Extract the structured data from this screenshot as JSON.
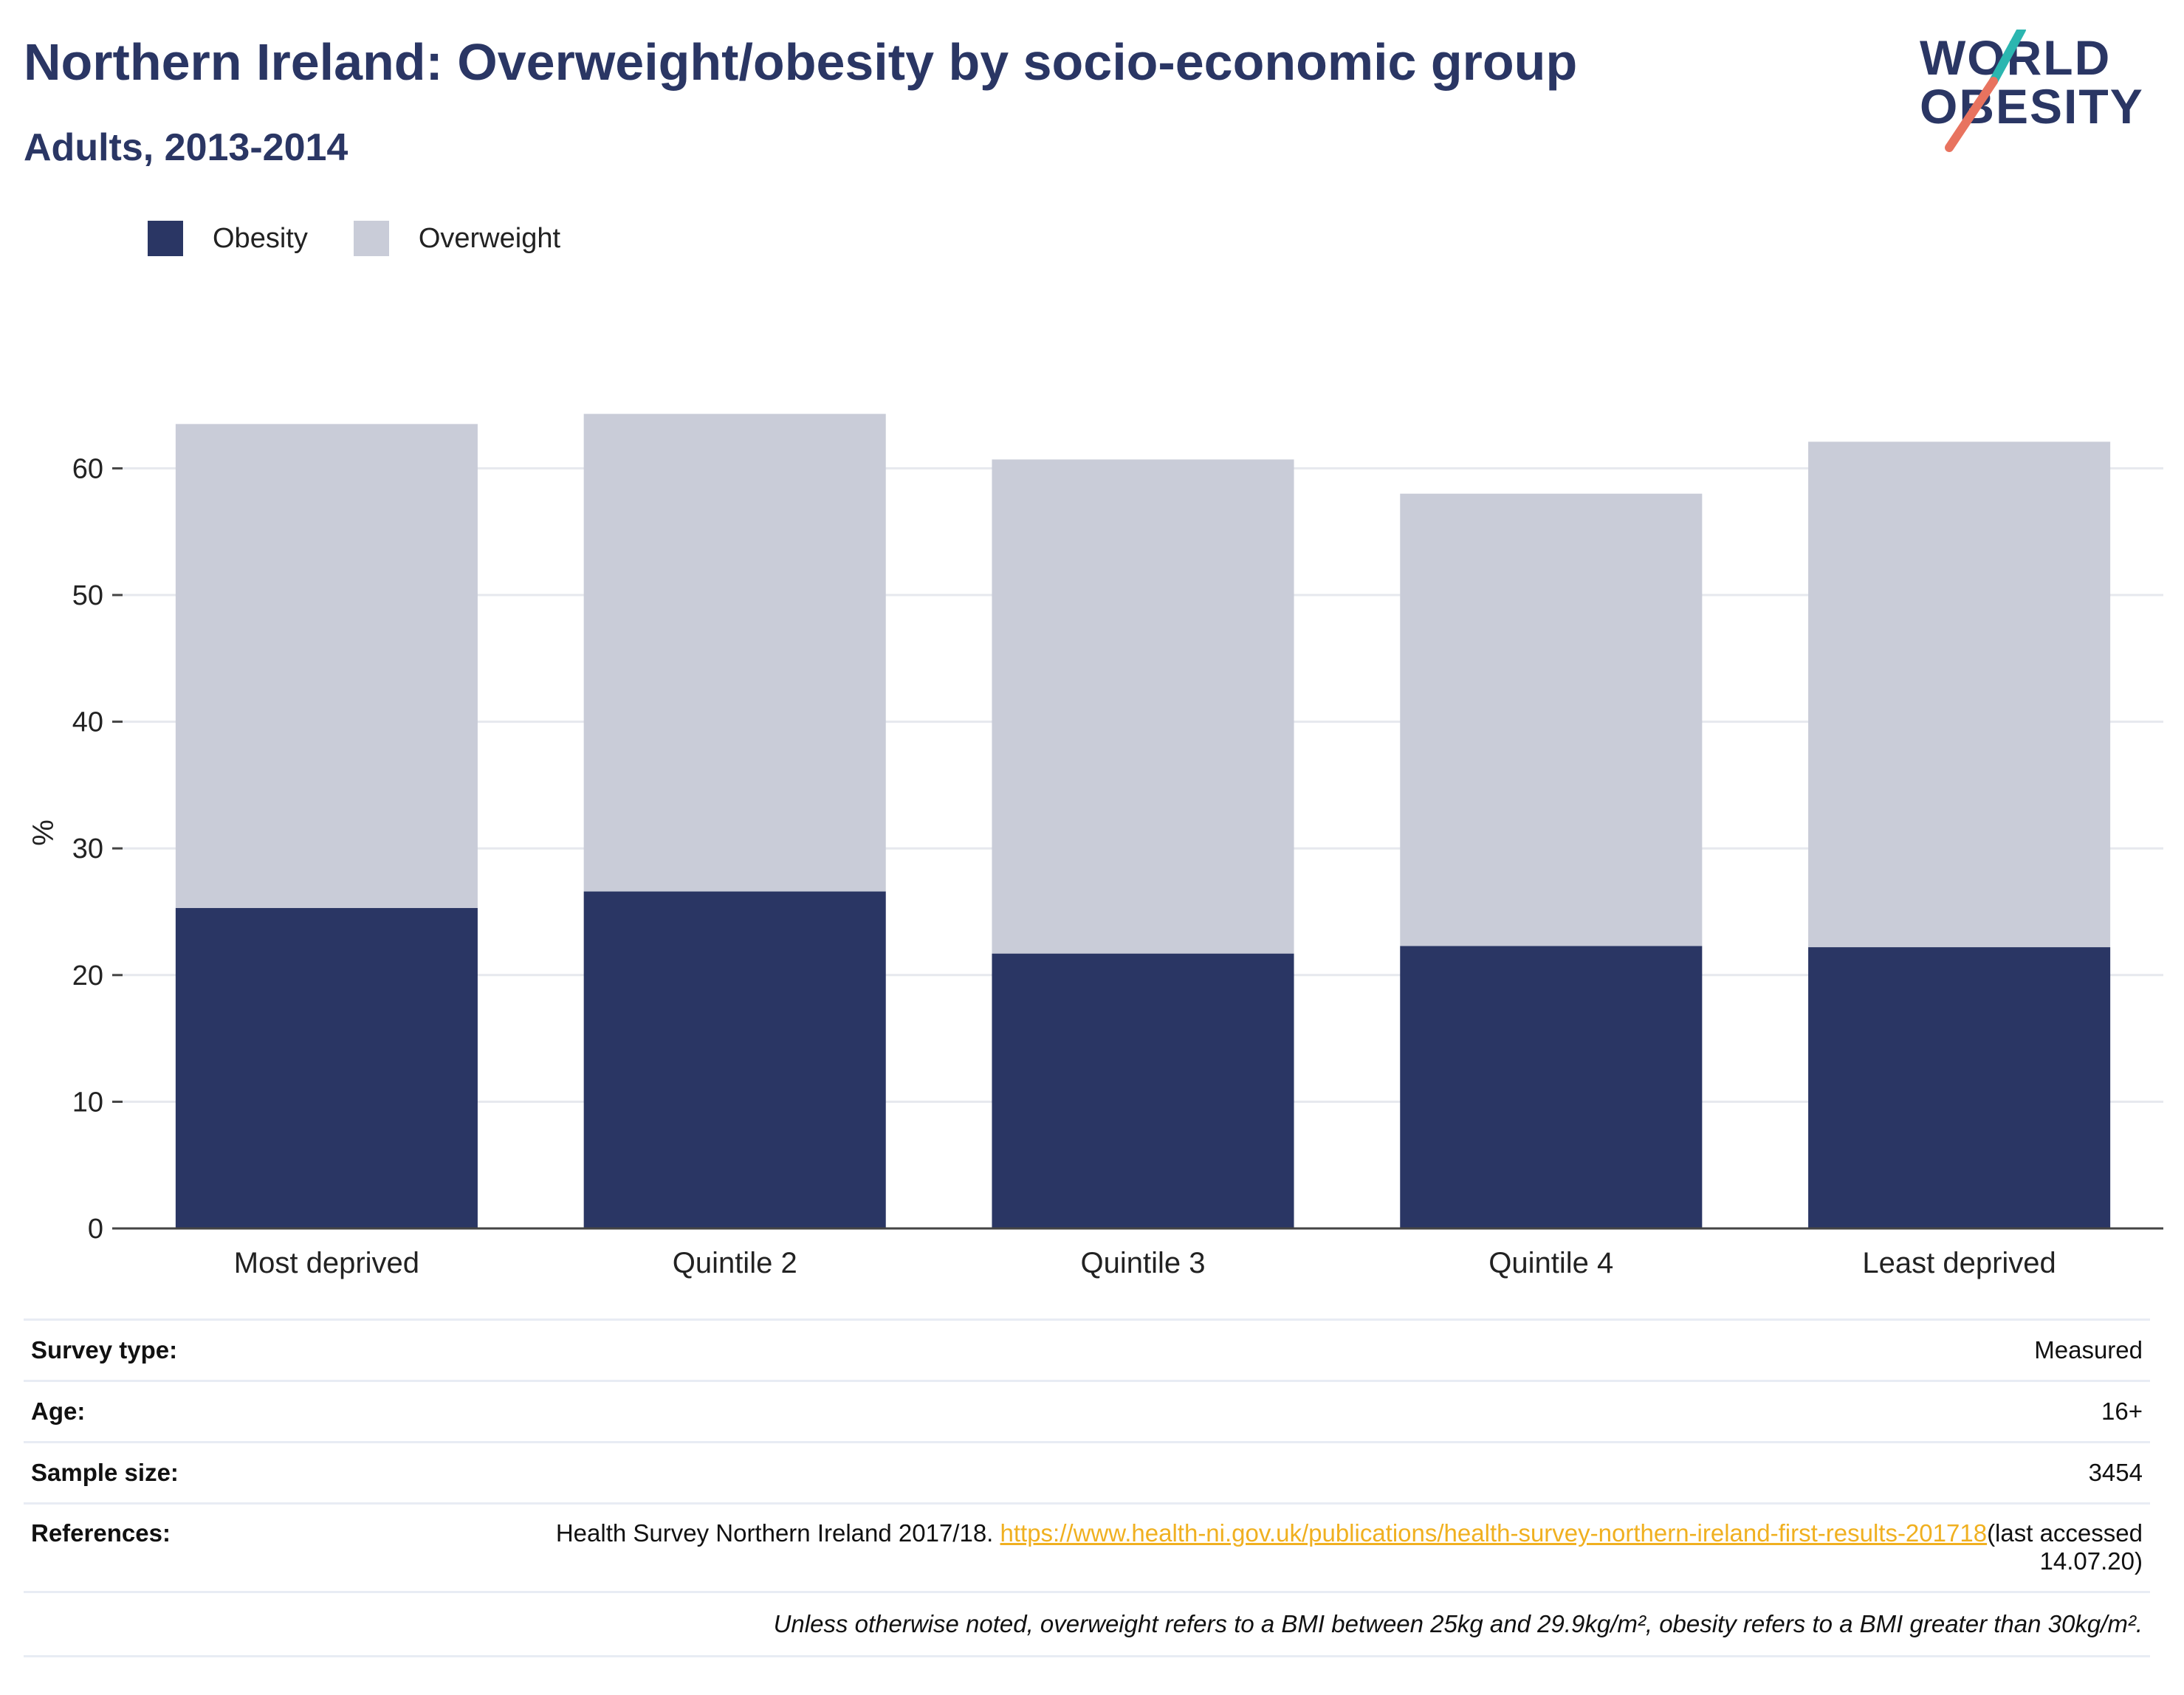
{
  "header": {
    "title": "Northern Ireland: Overweight/obesity by socio-economic group",
    "subtitle": "Adults, 2013-2014"
  },
  "logo": {
    "line1": "WORLD",
    "line2": "OBESITY",
    "icon": "world-obesity-logo"
  },
  "colors": {
    "obesity": "#2a3664",
    "overweight": "#c9ccd8",
    "title": "#2a3664",
    "link": "#f0b020",
    "accent_teal": "#2bb6b0",
    "accent_coral": "#e8735f"
  },
  "chart_data": {
    "type": "bar",
    "stacked": true,
    "categories": [
      "Most deprived",
      "Quintile 2",
      "Quintile 3",
      "Quintile 4",
      "Least deprived"
    ],
    "series": [
      {
        "name": "Obesity",
        "values": [
          25.3,
          26.6,
          21.7,
          22.3,
          22.2
        ]
      },
      {
        "name": "Overweight",
        "values": [
          38.2,
          37.7,
          39.0,
          35.7,
          39.9
        ]
      }
    ],
    "title": "",
    "xlabel": "",
    "ylabel": "%",
    "ylim": [
      0,
      70
    ],
    "yticks": [
      0,
      10,
      20,
      30,
      40,
      50,
      60
    ],
    "grid": true,
    "legend": "top-left"
  },
  "info": {
    "survey_type_label": "Survey type:",
    "survey_type_value": "Measured",
    "age_label": "Age:",
    "age_value": "16+",
    "sample_label": "Sample size:",
    "sample_value": "3454",
    "references_label": "References:",
    "references_text": "Health Survey Northern Ireland 2017/18. ",
    "references_link": "https://www.health-ni.gov.uk/publications/health-survey-northern-ireland-first-results-201718",
    "references_suffix": "(last accessed 14.07.20)",
    "note": "Unless otherwise noted, overweight refers to a BMI between 25kg and 29.9kg/m², obesity refers to a BMI greater than 30kg/m²."
  }
}
